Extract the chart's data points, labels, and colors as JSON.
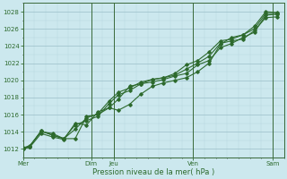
{
  "xlabel": "Pression niveau de la mer( hPa )",
  "background_color": "#cce8ee",
  "plot_bg_color": "#cce8ee",
  "grid_color_major": "#9abec8",
  "grid_color_minor": "#b8d5dc",
  "line_color": "#2d6a2d",
  "marker_color": "#2d6a2d",
  "ylim": [
    1011,
    1029
  ],
  "yticks": [
    1012,
    1014,
    1016,
    1018,
    1020,
    1022,
    1024,
    1026,
    1028
  ],
  "x_day_lines": [
    0.0,
    3.0,
    4.0,
    7.5,
    11.0
  ],
  "xtick_day_positions": [
    0.0,
    3.0,
    4.0,
    7.5,
    11.0
  ],
  "xtick_day_labels": [
    "Mer",
    "Dim",
    "Jeu",
    "Ven",
    "Sam"
  ],
  "xlim": [
    0,
    11.5
  ],
  "series1_x": [
    0.0,
    0.3,
    0.8,
    1.3,
    1.8,
    2.3,
    2.8,
    3.3,
    3.8,
    4.2,
    4.7,
    5.2,
    5.7,
    6.2,
    6.7,
    7.2,
    7.7,
    8.2,
    8.7,
    9.2,
    9.7,
    10.2,
    10.7,
    11.2
  ],
  "series1_y": [
    1012.1,
    1012.4,
    1014.0,
    1013.8,
    1013.2,
    1013.2,
    1015.8,
    1016.0,
    1016.8,
    1016.5,
    1017.2,
    1018.4,
    1019.3,
    1019.7,
    1020.0,
    1020.3,
    1021.0,
    1022.0,
    1024.2,
    1025.0,
    1025.3,
    1026.0,
    1027.8,
    1027.8
  ],
  "series2_x": [
    0.0,
    0.3,
    0.8,
    1.3,
    1.8,
    2.3,
    2.8,
    3.3,
    3.8,
    4.2,
    4.7,
    5.2,
    5.7,
    6.2,
    6.7,
    7.2,
    7.7,
    8.2,
    8.7,
    9.2,
    9.7,
    10.2,
    10.7,
    11.2
  ],
  "series2_y": [
    1012.0,
    1012.3,
    1014.1,
    1013.6,
    1013.2,
    1014.8,
    1015.3,
    1015.8,
    1017.3,
    1018.3,
    1018.8,
    1019.6,
    1020.1,
    1020.3,
    1020.8,
    1021.8,
    1022.3,
    1023.3,
    1024.6,
    1024.8,
    1025.3,
    1026.3,
    1028.0,
    1027.9
  ],
  "series3_x": [
    0.0,
    0.3,
    0.8,
    1.3,
    1.8,
    2.3,
    2.8,
    3.3,
    3.8,
    4.2,
    4.7,
    5.2,
    5.7,
    6.2,
    6.7,
    7.2,
    7.7,
    8.2,
    8.7,
    9.2,
    9.7,
    10.2,
    10.7,
    11.2
  ],
  "series3_y": [
    1012.0,
    1012.3,
    1014.1,
    1013.6,
    1013.2,
    1014.3,
    1015.6,
    1016.1,
    1017.6,
    1018.6,
    1019.1,
    1019.8,
    1020.1,
    1020.3,
    1020.6,
    1021.3,
    1022.0,
    1022.8,
    1024.3,
    1024.6,
    1024.8,
    1025.8,
    1027.3,
    1027.4
  ],
  "series4_x": [
    0.0,
    0.3,
    0.8,
    1.3,
    1.8,
    2.3,
    2.8,
    3.3,
    3.8,
    4.2,
    4.7,
    5.2,
    5.7,
    6.2,
    6.7,
    7.2,
    7.7,
    8.2,
    8.7,
    9.2,
    9.7,
    10.2,
    10.7,
    11.2
  ],
  "series4_y": [
    1012.0,
    1012.2,
    1013.8,
    1013.4,
    1013.1,
    1015.0,
    1014.8,
    1016.3,
    1016.8,
    1017.8,
    1019.3,
    1019.6,
    1019.8,
    1020.1,
    1020.5,
    1020.8,
    1021.8,
    1022.3,
    1023.8,
    1024.3,
    1025.0,
    1025.6,
    1027.6,
    1027.7
  ]
}
